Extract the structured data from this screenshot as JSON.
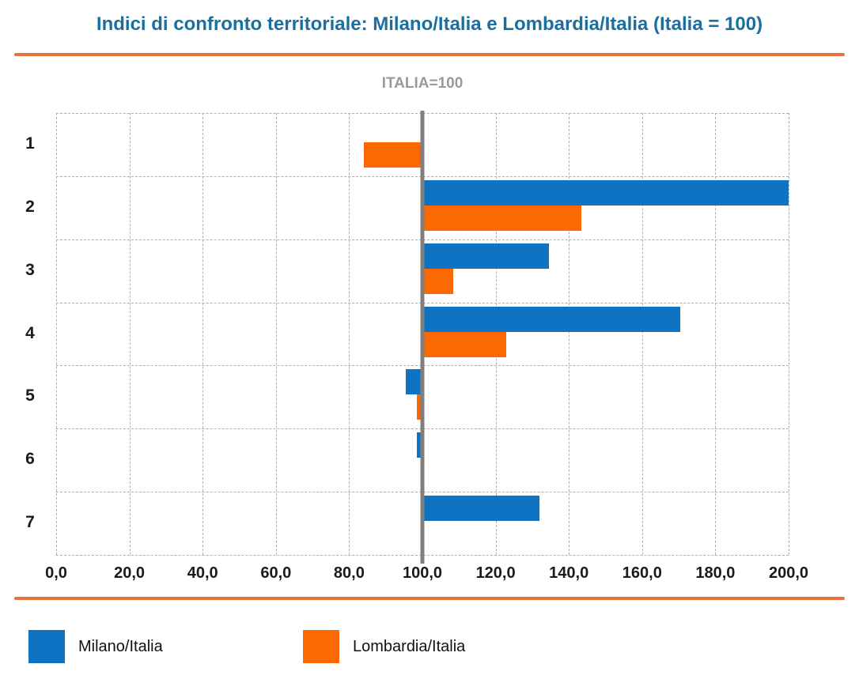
{
  "header": {
    "title": "Indici di confronto territoriale: Milano/Italia e Lombardia/Italia (Italia = 100)"
  },
  "colors": {
    "title": "#1b6f9e",
    "subtitle": "#9a9a9a",
    "divider": "#e8713a",
    "grid": "#b0b0b0",
    "reference_line": "#7f7f7f",
    "axis_text": "#1a1a1a",
    "milano_blue": "#0d73c2",
    "lombardia_orange": "#fb6a02"
  },
  "chart_data": {
    "type": "bar",
    "orientation": "horizontal",
    "title": "Indici di confronto territoriale: Milano/Italia e Lombardia/Italia (Italia = 100)",
    "subtitle": "ITALIA=100",
    "categories": [
      "1",
      "2",
      "3",
      "4",
      "5",
      "6",
      "7"
    ],
    "series": [
      {
        "name": "Milano/Italia",
        "color": "#0d73c2",
        "values": [
          null,
          200,
          134.5,
          170.5,
          95.5,
          98.5,
          132
        ]
      },
      {
        "name": "Lombardia/Italia",
        "color": "#fb6a02",
        "values": [
          84,
          143.5,
          108.5,
          123,
          98.5,
          null,
          null
        ]
      }
    ],
    "xlim": [
      0,
      200
    ],
    "xtick_step": 20,
    "xtick_labels": [
      "0,0",
      "20,0",
      "40,0",
      "60,0",
      "80,0",
      "100,0",
      "120,0",
      "140,0",
      "160,0",
      "180,0",
      "200,0"
    ],
    "bar_base": 100,
    "reference_line": {
      "value": 100,
      "color": "#7f7f7f"
    },
    "grid": {
      "style": "dashed",
      "color": "#b0b0b0"
    },
    "legend_position": "bottom"
  }
}
